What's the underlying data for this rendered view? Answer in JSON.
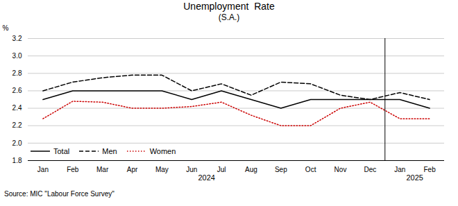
{
  "chart_data": {
    "type": "line",
    "title": "Unemployment  Rate",
    "subtitle": "(S.A.)",
    "ylabel": "%",
    "source": "Source: MIC \"Labour Force Survey\"",
    "categories": [
      "Jan",
      "Feb",
      "Mar",
      "Apr",
      "May",
      "Jun",
      "Jul",
      "Aug",
      "Sep",
      "Oct",
      "Nov",
      "Dec",
      "Jan",
      "Feb"
    ],
    "series": [
      {
        "name": "Total",
        "color": "#000000",
        "line_style": "solid",
        "values": [
          2.5,
          2.6,
          2.6,
          2.6,
          2.6,
          2.5,
          2.6,
          2.5,
          2.4,
          2.5,
          2.5,
          2.5,
          2.5,
          2.4
        ]
      },
      {
        "name": "Men",
        "color": "#000000",
        "line_style": "dashed",
        "values": [
          2.6,
          2.7,
          2.75,
          2.78,
          2.78,
          2.6,
          2.68,
          2.55,
          2.7,
          2.68,
          2.55,
          2.5,
          2.58,
          2.5
        ]
      },
      {
        "name": "Women",
        "color": "#cc0000",
        "line_style": "dotted",
        "values": [
          2.28,
          2.48,
          2.47,
          2.4,
          2.4,
          2.42,
          2.47,
          2.32,
          2.2,
          2.2,
          2.4,
          2.47,
          2.28,
          2.28
        ]
      }
    ],
    "annotations": [
      {
        "text": "2024",
        "span": 12
      },
      {
        "text": "2025",
        "span": 2
      }
    ],
    "ylim": [
      1.8,
      3.2
    ],
    "yticks": [
      1.8,
      {
        "value": 2.0,
        "label": "2.0"
      },
      2.2,
      2.4,
      2.6,
      2.8,
      {
        "value": 3.0,
        "label": "3.0"
      },
      3.2
    ],
    "grid": true,
    "legend": "lower left"
  }
}
